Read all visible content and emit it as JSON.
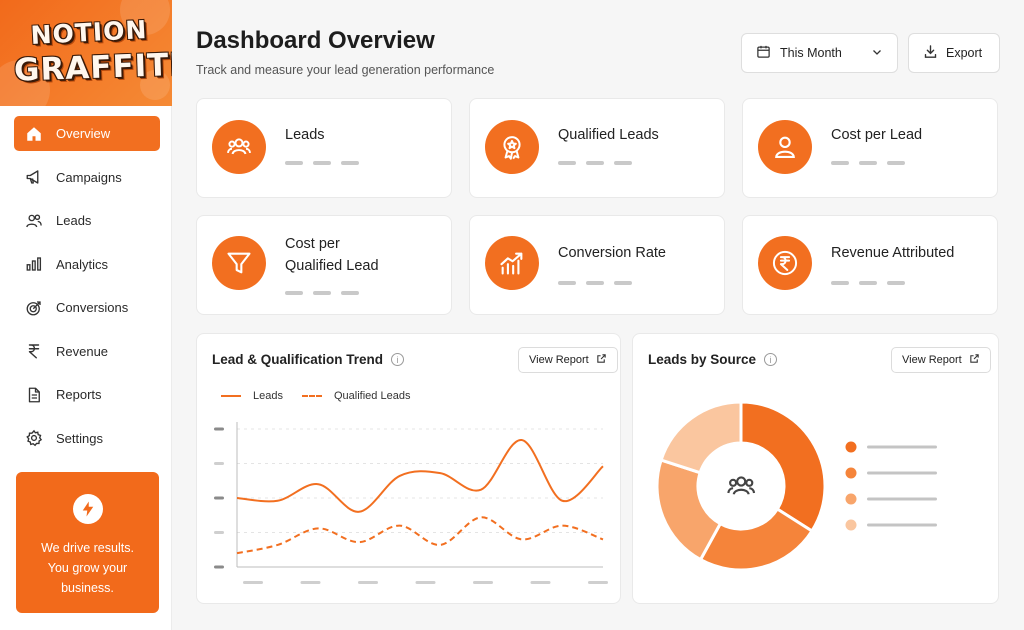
{
  "brand": {
    "line1": "NOTION",
    "line2": "GRAFFITI"
  },
  "sidebar": {
    "items": [
      {
        "label": "Overview",
        "icon": "home-icon",
        "active": true
      },
      {
        "label": "Campaigns",
        "icon": "megaphone-icon"
      },
      {
        "label": "Leads",
        "icon": "users-icon"
      },
      {
        "label": "Analytics",
        "icon": "bar-chart-icon"
      },
      {
        "label": "Conversions",
        "icon": "target-icon"
      },
      {
        "label": "Revenue",
        "icon": "rupee-icon"
      },
      {
        "label": "Reports",
        "icon": "document-icon"
      },
      {
        "label": "Settings",
        "icon": "gear-icon"
      }
    ],
    "promo": {
      "icon": "lightning-icon",
      "line1": "We drive results.",
      "line2": "You grow your",
      "line3": "business."
    }
  },
  "header": {
    "title": "Dashboard Overview",
    "subtitle": "Track and measure your lead generation performance",
    "period_label": "This Month",
    "export_label": "Export"
  },
  "kpis": [
    {
      "label": "Leads",
      "icon": "users-icon"
    },
    {
      "label": "Qualified Leads",
      "icon": "award-badge-icon"
    },
    {
      "label": "Cost per Lead",
      "icon": "user-icon"
    },
    {
      "label_line1": "Cost per",
      "label_line2": "Qualified Lead",
      "icon": "funnel-icon"
    },
    {
      "label": "Conversion Rate",
      "icon": "trend-chart-icon"
    },
    {
      "label": "Revenue Attributed",
      "icon": "rupee-coin-icon"
    }
  ],
  "trend": {
    "title": "Lead & Qualification Trend",
    "view_report": "View Report",
    "legend": [
      {
        "name": "Leads",
        "style": "solid"
      },
      {
        "name": "Qualified Leads",
        "style": "dashed"
      }
    ]
  },
  "source": {
    "title": "Leads by Source",
    "view_report": "View Report",
    "center_icon": "users-icon"
  },
  "colors": {
    "accent": "#f26f20",
    "accent_dark": "#f26a1b",
    "shades": [
      "#f26f20",
      "#f5843a",
      "#f8a56b",
      "#fac69f"
    ]
  },
  "chart_data": {
    "type": "line",
    "title": "Lead & Qualification Trend",
    "legend_placement": "top-left",
    "grid": true,
    "series": [
      {
        "name": "Leads",
        "values": [
          50,
          48,
          60,
          40,
          66,
          68,
          56,
          92,
          48,
          73
        ]
      },
      {
        "name": "Qualified Leads",
        "values": [
          10,
          16,
          28,
          18,
          30,
          16,
          36,
          20,
          30,
          20
        ]
      }
    ],
    "ylim": [
      0,
      100
    ]
  },
  "donut_data": {
    "type": "pie",
    "style": "donut",
    "slices": [
      {
        "value": 34
      },
      {
        "value": 24
      },
      {
        "value": 22
      },
      {
        "value": 20
      }
    ]
  }
}
